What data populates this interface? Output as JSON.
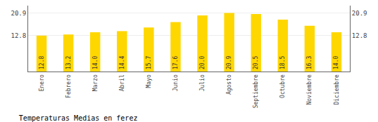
{
  "chart_data": {
    "type": "bar",
    "title": "Temperaturas Medias en ferez",
    "categories": [
      "Enero",
      "Febrero",
      "Marzo",
      "Abril",
      "Mayo",
      "Junio",
      "Julio",
      "Agosto",
      "Septiembre",
      "Octubre",
      "Noviembre",
      "Diciembre"
    ],
    "values": [
      12.8,
      13.2,
      14.0,
      14.4,
      15.7,
      17.6,
      20.0,
      20.9,
      20.5,
      18.5,
      16.3,
      14.0
    ],
    "value_labels": [
      "12.8",
      "13.2",
      "14.0",
      "14.4",
      "15.7",
      "17.6",
      "20.0",
      "20.9",
      "20.5",
      "18.5",
      "16.3",
      "14.0"
    ],
    "color": "#FFD700",
    "ylim": [
      0,
      23.5
    ],
    "yticks": [
      12.8,
      20.9
    ],
    "y2lim": [
      0,
      23.5
    ],
    "y2ticks": [
      12.8,
      20.9
    ],
    "grid": true,
    "data_labels": true
  }
}
